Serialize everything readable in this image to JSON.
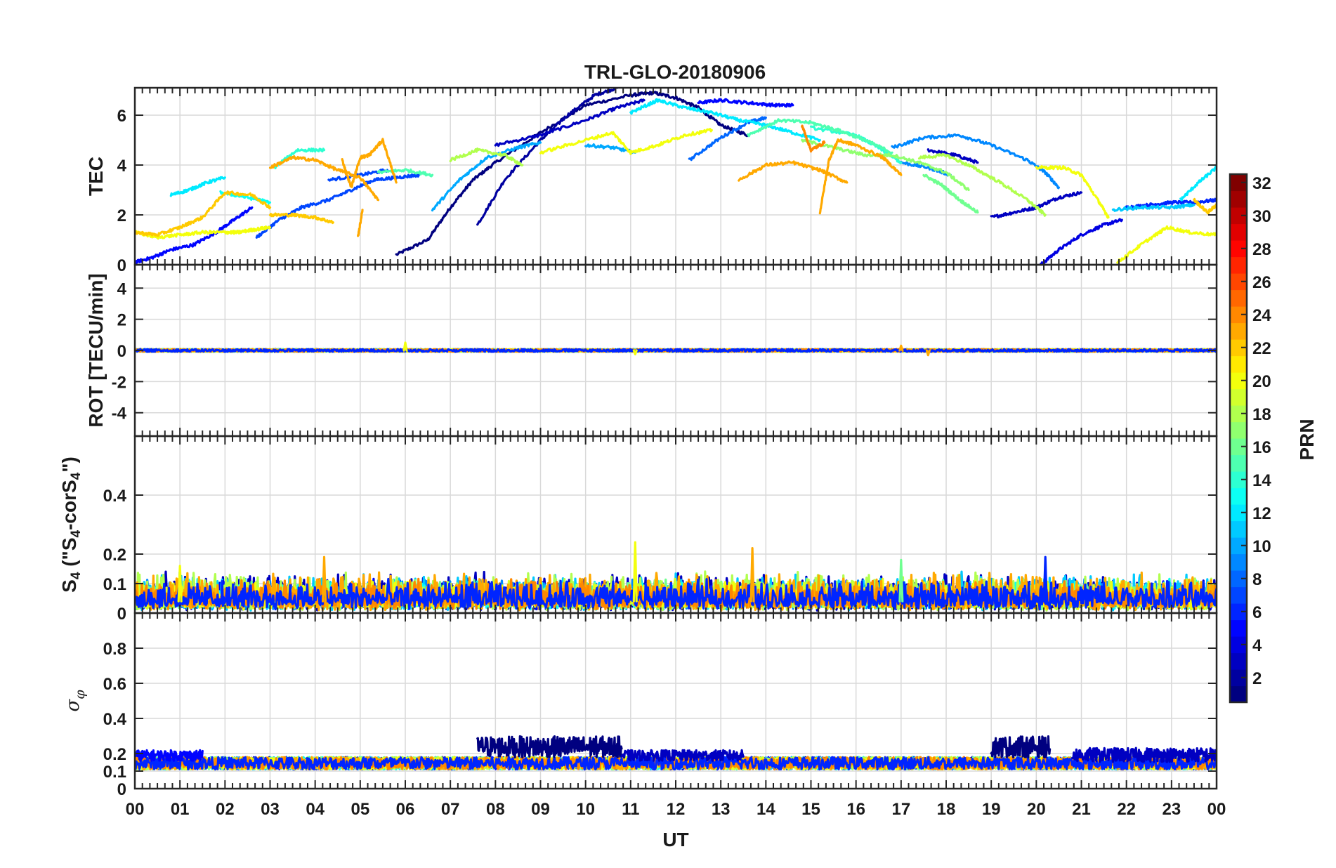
{
  "chart_data": {
    "type": "line",
    "title": "TRL-GLO-20180906",
    "xlabel": "UT",
    "x_ticks": [
      "00",
      "01",
      "02",
      "03",
      "04",
      "05",
      "06",
      "07",
      "08",
      "09",
      "10",
      "11",
      "12",
      "13",
      "14",
      "15",
      "16",
      "17",
      "18",
      "19",
      "20",
      "21",
      "22",
      "23",
      "00"
    ],
    "xlim": [
      0,
      24
    ],
    "grid": true,
    "colorbar": {
      "label": "PRN",
      "range": [
        1,
        32
      ],
      "ticks": [
        "2",
        "4",
        "6",
        "8",
        "10",
        "12",
        "14",
        "16",
        "18",
        "20",
        "22",
        "24",
        "26",
        "28",
        "30",
        "32"
      ],
      "colormap": "jet"
    },
    "panels": [
      {
        "id": "tec",
        "ylabel": "TEC",
        "ylim": [
          0,
          7.1
        ],
        "yticks": [
          0,
          2,
          4,
          6
        ],
        "ytick_labels": [
          "0",
          "2",
          "4",
          "6"
        ],
        "series": [
          {
            "prn": 1,
            "x": [
              5.8,
              6.5,
              7.0,
              7.5,
              8.0,
              9.0,
              10.0,
              11.0,
              11.5,
              12.0,
              12.5,
              13.0,
              13.6
            ],
            "y": [
              0.4,
              1.0,
              2.3,
              3.4,
              4.1,
              5.3,
              6.4,
              6.8,
              6.9,
              6.7,
              6.3,
              5.6,
              5.2
            ]
          },
          {
            "prn": 2,
            "x": [
              7.6,
              8.2,
              9.0,
              9.6,
              10.2,
              10.7
            ],
            "y": [
              1.6,
              3.4,
              5.0,
              6.0,
              6.8,
              7.1
            ]
          },
          {
            "prn": 3,
            "x": [
              8.0,
              9.0,
              10.0,
              10.7,
              11.3
            ],
            "y": [
              4.8,
              5.2,
              5.8,
              6.3,
              6.6
            ]
          },
          {
            "prn": 3,
            "x": [
              17.6,
              18.2,
              18.7
            ],
            "y": [
              4.6,
              4.4,
              4.1
            ]
          },
          {
            "prn": 3,
            "x": [
              19.0,
              19.5,
              20.0,
              20.5,
              21.0
            ],
            "y": [
              1.9,
              2.1,
              2.3,
              2.7,
              2.9
            ]
          },
          {
            "prn": 4,
            "x": [
              20.1,
              20.5,
              21.0,
              21.5,
              21.9
            ],
            "y": [
              0.0,
              0.6,
              1.2,
              1.6,
              1.8
            ]
          },
          {
            "prn": 5,
            "x": [
              0.0,
              0.4,
              0.8,
              1.3,
              1.8,
              2.2,
              2.6
            ],
            "y": [
              0.1,
              0.3,
              0.6,
              0.8,
              1.3,
              1.8,
              2.3
            ]
          },
          {
            "prn": 5,
            "x": [
              12.5,
              13.0,
              13.6,
              14.2,
              14.6
            ],
            "y": [
              6.5,
              6.6,
              6.5,
              6.4,
              6.4
            ]
          },
          {
            "prn": 6,
            "x": [
              22.0,
              22.5,
              23.0,
              23.5,
              24.0
            ],
            "y": [
              2.3,
              2.4,
              2.5,
              2.5,
              2.6
            ]
          },
          {
            "prn": 7,
            "x": [
              2.7,
              3.2,
              3.7,
              4.3,
              4.8,
              5.3,
              5.8,
              6.3
            ],
            "y": [
              1.1,
              1.8,
              2.3,
              2.6,
              3.0,
              3.4,
              3.5,
              3.6
            ]
          },
          {
            "prn": 7,
            "x": [
              4.3,
              5.0,
              5.6
            ],
            "y": [
              3.4,
              3.6,
              3.8
            ]
          },
          {
            "prn": 8,
            "x": [
              12.3,
              13.0,
              13.6,
              14.0
            ],
            "y": [
              4.2,
              5.1,
              5.7,
              5.9
            ]
          },
          {
            "prn": 9,
            "x": [
              16.8,
              17.5,
              18.3,
              19.0,
              19.8,
              20.2,
              20.5
            ],
            "y": [
              4.7,
              5.1,
              5.2,
              4.8,
              4.2,
              3.7,
              3.1
            ]
          },
          {
            "prn": 9,
            "x": [
              17.0,
              17.6,
              18.1
            ],
            "y": [
              4.1,
              3.9,
              3.6
            ]
          },
          {
            "prn": 10,
            "x": [
              6.6,
              7.2,
              7.8,
              8.5,
              9.0
            ],
            "y": [
              2.2,
              3.4,
              4.3,
              4.7,
              4.9
            ]
          },
          {
            "prn": 10,
            "x": [
              10.0,
              10.6,
              11.1
            ],
            "y": [
              4.8,
              4.7,
              4.5
            ]
          },
          {
            "prn": 11,
            "x": [
              21.7,
              22.3,
              23.0,
              23.5
            ],
            "y": [
              2.2,
              2.3,
              2.3,
              2.4
            ]
          },
          {
            "prn": 12,
            "x": [
              0.8,
              1.2,
              1.6,
              2.0
            ],
            "y": [
              2.8,
              3.0,
              3.3,
              3.5
            ]
          },
          {
            "prn": 12,
            "x": [
              11.0,
              11.6,
              12.2,
              12.8,
              13.4,
              14.0,
              14.6,
              15.2
            ],
            "y": [
              6.1,
              6.6,
              6.3,
              6.1,
              5.8,
              5.6,
              5.3,
              5.0
            ]
          },
          {
            "prn": 12,
            "x": [
              23.2,
              23.6,
              24.0
            ],
            "y": [
              2.6,
              3.3,
              3.9
            ]
          },
          {
            "prn": 13,
            "x": [
              1.9,
              2.5,
              3.0
            ],
            "y": [
              2.9,
              2.7,
              2.5
            ]
          },
          {
            "prn": 14,
            "x": [
              3.1,
              3.6,
              4.2
            ],
            "y": [
              3.9,
              4.6,
              4.6
            ]
          },
          {
            "prn": 14,
            "x": [
              15.0,
              16.0,
              16.5,
              17.0
            ],
            "y": [
              5.5,
              5.2,
              4.7,
              4.1
            ]
          },
          {
            "prn": 15,
            "x": [
              5.4,
              6.0,
              6.6
            ],
            "y": [
              3.7,
              3.8,
              3.6
            ]
          },
          {
            "prn": 15,
            "x": [
              13.6,
              14.3,
              15.0,
              15.6,
              16.2,
              16.8
            ],
            "y": [
              5.2,
              5.8,
              5.7,
              5.4,
              5.0,
              4.5
            ]
          },
          {
            "prn": 16,
            "x": [
              17.5,
              17.9,
              18.3,
              18.7
            ],
            "y": [
              3.6,
              3.2,
              2.6,
              2.1
            ]
          },
          {
            "prn": 17,
            "x": [
              14.8,
              15.5,
              16.2,
              16.8,
              17.4,
              18.0,
              18.5
            ],
            "y": [
              5.0,
              4.7,
              4.4,
              4.4,
              4.1,
              3.7,
              3.0
            ]
          },
          {
            "prn": 18,
            "x": [
              17.4,
              18.0,
              18.6,
              19.2,
              19.8,
              20.2
            ],
            "y": [
              4.3,
              4.4,
              3.9,
              3.3,
              2.6,
              2.0
            ]
          },
          {
            "prn": 18,
            "x": [
              7.0,
              7.6,
              8.2,
              8.6
            ],
            "y": [
              4.2,
              4.6,
              4.4,
              4.0
            ]
          },
          {
            "prn": 20,
            "x": [
              0.0,
              0.5,
              1.0,
              1.5,
              2.0,
              2.3,
              2.6,
              3.0
            ],
            "y": [
              1.3,
              1.1,
              1.2,
              1.3,
              1.3,
              1.3,
              1.4,
              1.5
            ]
          },
          {
            "prn": 20,
            "x": [
              9.0,
              9.8,
              10.6,
              11.0,
              11.6,
              12.2,
              12.8
            ],
            "y": [
              4.5,
              4.9,
              5.3,
              4.5,
              4.8,
              5.2,
              5.4
            ]
          },
          {
            "prn": 20,
            "x": [
              20.0,
              20.6,
              21.0,
              21.4,
              21.6
            ],
            "y": [
              3.9,
              3.9,
              3.6,
              2.5,
              1.9
            ]
          },
          {
            "prn": 20,
            "x": [
              21.8,
              22.4,
              22.9,
              23.4,
              24.0
            ],
            "y": [
              0.1,
              0.9,
              1.5,
              1.3,
              1.2
            ]
          },
          {
            "prn": 22,
            "x": [
              0.0,
              0.5,
              1.0,
              1.5,
              2.0,
              2.6,
              3.0
            ],
            "y": [
              1.3,
              1.2,
              1.5,
              1.9,
              2.9,
              2.8,
              2.3
            ]
          },
          {
            "prn": 22,
            "x": [
              3.0,
              3.5,
              4.0,
              4.4
            ],
            "y": [
              2.0,
              2.0,
              1.9,
              1.7
            ]
          },
          {
            "prn": 22,
            "x": [
              23.5,
              23.8,
              24.0
            ],
            "y": [
              2.6,
              2.1,
              2.4
            ]
          },
          {
            "prn": 23,
            "x": [
              3.0,
              3.5,
              4.0,
              4.5,
              5.0,
              5.4
            ],
            "y": [
              3.9,
              4.3,
              4.2,
              3.8,
              3.5,
              2.6
            ]
          },
          {
            "prn": 23,
            "x": [
              4.6,
              4.8,
              5.0,
              5.2,
              5.5,
              5.8
            ],
            "y": [
              4.2,
              3.1,
              4.3,
              4.4,
              5.0,
              3.3
            ]
          },
          {
            "prn": 23,
            "x": [
              4.95,
              5.05
            ],
            "y": [
              1.1,
              2.2
            ]
          },
          {
            "prn": 23,
            "x": [
              13.4,
              14.0,
              14.6,
              15.2,
              15.8
            ],
            "y": [
              3.4,
              4.0,
              4.1,
              3.8,
              3.3
            ]
          },
          {
            "prn": 23,
            "x": [
              15.2,
              15.4,
              15.6,
              16.0,
              16.6,
              17.0
            ],
            "y": [
              2.1,
              4.2,
              5.0,
              4.8,
              4.3,
              3.6
            ]
          },
          {
            "prn": 24,
            "x": [
              14.8,
              15.0,
              15.3
            ],
            "y": [
              5.6,
              4.6,
              4.9
            ]
          }
        ]
      },
      {
        "id": "rot",
        "ylabel": "ROT [TECU/min]",
        "ylim": [
          -5.5,
          5.5
        ],
        "yticks": [
          -4,
          -2,
          0,
          2,
          4
        ],
        "ytick_labels": [
          "-4",
          "-2",
          "0",
          "2",
          "4"
        ],
        "noise_baseline": 0.0,
        "noise_amplitude": 0.12,
        "peaks": [
          {
            "x": 6.0,
            "y": 0.5
          },
          {
            "x": 17.0,
            "y": 0.3
          },
          {
            "x": 11.1,
            "y": -0.25
          },
          {
            "x": 17.6,
            "y": -0.3
          }
        ]
      },
      {
        "id": "s4",
        "ylabel": "S4 (\"S4-corS4\")",
        "ylim": [
          0,
          0.6
        ],
        "yticks": [
          0,
          0.1,
          0.2,
          0.4
        ],
        "ytick_labels": [
          "0",
          "0.1",
          "0.2",
          "0.4"
        ],
        "noise_baseline": 0.04,
        "noise_amplitude": 0.06,
        "peaks": [
          {
            "x": 1.0,
            "y": 0.16
          },
          {
            "x": 4.2,
            "y": 0.19
          },
          {
            "x": 11.1,
            "y": 0.24
          },
          {
            "x": 13.7,
            "y": 0.22
          },
          {
            "x": 20.2,
            "y": 0.19
          },
          {
            "x": 17.0,
            "y": 0.18
          }
        ]
      },
      {
        "id": "sigma_phi",
        "ylabel": "σφ",
        "ylim": [
          0,
          1.0
        ],
        "yticks": [
          0,
          0.1,
          0.2,
          0.4,
          0.6,
          0.8
        ],
        "ytick_labels": [
          "0",
          "0.1",
          "0.2",
          "0.4",
          "0.6",
          "0.8"
        ],
        "noise_baseline": 0.14,
        "noise_amplitude": 0.05,
        "segments": [
          {
            "prn": 1,
            "x0": 7.6,
            "x1": 10.8,
            "base": 0.22,
            "amp": 0.12
          },
          {
            "prn": 1,
            "x0": 19.0,
            "x1": 20.3,
            "base": 0.22,
            "amp": 0.12
          },
          {
            "prn": 3,
            "x0": 10.8,
            "x1": 13.5,
            "base": 0.18,
            "amp": 0.06
          },
          {
            "prn": 3,
            "x0": 20.8,
            "x1": 24.0,
            "base": 0.18,
            "amp": 0.08
          },
          {
            "prn": 5,
            "x0": 0.0,
            "x1": 1.5,
            "base": 0.18,
            "amp": 0.06
          }
        ]
      }
    ]
  }
}
